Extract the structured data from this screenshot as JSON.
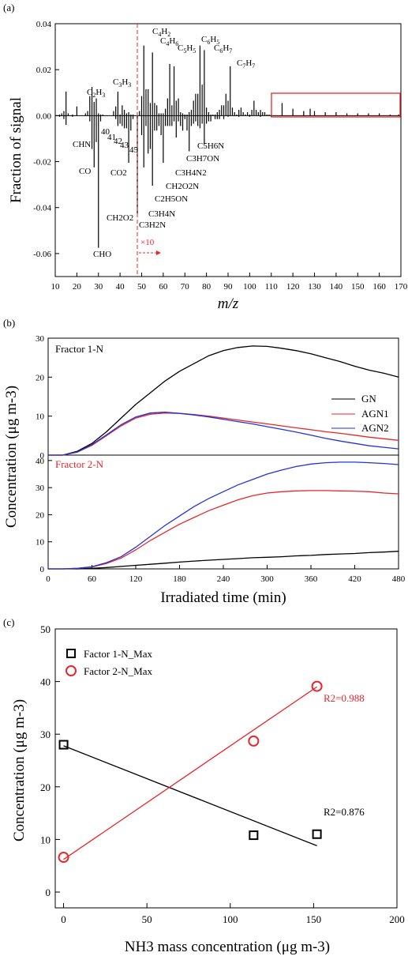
{
  "panel_a": {
    "panel_label": "(a)",
    "ylabel": "Fraction of signal",
    "xlabel": "m/z",
    "multiplier_label": "×10",
    "xticks": [
      "10",
      "20",
      "30",
      "40",
      "50",
      "60",
      "70",
      "80",
      "90",
      "100",
      "110",
      "120",
      "130",
      "140",
      "150",
      "160",
      "170"
    ],
    "yticks": [
      "0.04",
      "0.02",
      "0.00",
      "-0.02",
      "-0.04",
      "-0.06"
    ],
    "annotations_top": [
      {
        "base": "C",
        "sub1": "2",
        "mid": "H",
        "sub2": "3"
      },
      {
        "base": "C",
        "sub1": "3",
        "mid": "H",
        "sub2": "3"
      },
      {
        "base": "C",
        "sub1": "4",
        "mid": "H",
        "sub2": "2"
      },
      {
        "base": "C",
        "sub1": "4",
        "mid": "H",
        "sub2": "6"
      },
      {
        "base": "C",
        "sub1": "5",
        "mid": "H",
        "sub2": "5"
      },
      {
        "base": "C",
        "sub1": "6",
        "mid": "H",
        "sub2": "5"
      },
      {
        "base": "C",
        "sub1": "6",
        "mid": "H",
        "sub2": "7"
      },
      {
        "base": "C",
        "sub1": "7",
        "mid": "H",
        "sub2": "7"
      }
    ],
    "annotations_bottom": {
      "chn": "CHN",
      "co": "CO",
      "n40": "40",
      "n41": "41",
      "n42": "42",
      "n43": "43",
      "n45": "45",
      "co2": "CO2",
      "ch2o2": "CH2O2",
      "cho": "CHO",
      "c3h2n": "C3H2N",
      "c3h4n": "C3H4N",
      "c2h5on": "C2H5ON",
      "ch2o2n": "CH2O2N",
      "c3h4n2": "C3H4N2",
      "c3h7on": "C3H7ON",
      "c5h6n": "C5H6N"
    }
  },
  "panel_b": {
    "panel_label": "(b)",
    "ylabel": "Concentration (μg m-3)",
    "xlabel": "Irradiated  time (min)",
    "top_title": "Fractor 1-N",
    "bottom_title": "Fractor 2-N",
    "xticks": [
      "0",
      "60",
      "120",
      "180",
      "240",
      "300",
      "360",
      "420",
      "480"
    ],
    "yticks_top": [
      "0",
      "10",
      "20",
      "30"
    ],
    "yticks_bottom": [
      "0",
      "10",
      "20",
      "30",
      "40"
    ],
    "legend": [
      "GN",
      "AGN1",
      "AGN2"
    ]
  },
  "panel_c": {
    "panel_label": "(c)",
    "ylabel": "Concentration (μg m-3)",
    "xlabel": "NH3 mass concentration  (μg m-3)",
    "xticks": [
      "0",
      "50",
      "100",
      "150",
      "200"
    ],
    "yticks": [
      "0",
      "10",
      "20",
      "30",
      "40",
      "50"
    ],
    "legend": [
      "Factor 1-N_Max",
      "Factor 2-N_Max"
    ],
    "r2_red": "R2=0.988",
    "r2_black": "R2=0.876"
  },
  "colors": {
    "black": "#000000",
    "red": "#e8262b",
    "blue": "#2233dd"
  },
  "chart_data": [
    {
      "type": "bar",
      "panel": "a",
      "xlabel": "m/z",
      "ylabel": "Fraction of signal",
      "xlim": [
        10,
        170
      ],
      "ylim": [
        -0.07,
        0.04
      ],
      "series": [
        {
          "name": "Factor 1-N",
          "x": [
            12,
            13,
            14,
            15,
            16,
            18,
            20,
            24,
            25,
            26,
            27,
            28,
            29,
            30,
            31,
            32,
            37,
            38,
            39,
            40,
            41,
            42,
            43,
            44,
            45,
            46,
            49,
            50,
            51,
            52,
            53,
            54,
            55,
            56,
            57,
            58,
            59,
            60,
            61,
            62,
            63,
            64,
            65,
            66,
            67,
            68,
            69,
            70,
            71,
            72,
            73,
            74,
            75,
            76,
            77,
            78,
            79,
            80,
            81,
            82,
            83,
            84,
            85,
            86,
            87,
            88,
            89,
            90,
            91,
            92,
            93,
            94,
            95,
            96,
            97,
            98,
            99,
            100,
            101,
            102,
            103,
            104,
            105,
            106,
            107,
            108,
            109,
            110,
            115,
            120,
            125,
            128,
            130,
            135,
            140,
            145,
            150,
            155,
            160,
            165,
            169
          ],
          "values": [
            0.0005,
            0.001,
            0.002,
            0.0105,
            0.001,
            0.0005,
            0.004,
            0.001,
            0.002,
            0.0085,
            0.0125,
            0.006,
            0.0075,
            0.001,
            0.0005,
            0.0005,
            0.002,
            0.004,
            0.0105,
            0.0005,
            0.0045,
            0.0025,
            0.001,
            0.0015,
            0.0005,
            0.0005,
            0.002,
            0.0085,
            0.0305,
            0.0115,
            0.0115,
            0.0055,
            0.0275,
            0.0055,
            0.0045,
            0.001,
            0.001,
            0.001,
            0.003,
            0.0075,
            0.0225,
            0.0045,
            0.0215,
            0.0065,
            0.0075,
            0.0015,
            0.001,
            0.0005,
            0.0005,
            0.0015,
            0.0025,
            0.0065,
            0.0095,
            0.0095,
            0.0305,
            0.0135,
            0.0285,
            0.0035,
            0.0015,
            0.0005,
            0.0005,
            0.0005,
            0.0015,
            0.0025,
            0.0045,
            0.0045,
            0.0095,
            0.0065,
            0.0215,
            0.0035,
            0.0015,
            0.0005,
            0.0025,
            0.0035,
            0.0015,
            0.0005,
            0.0015,
            0.0005,
            0.0025,
            0.0065,
            0.0025,
            0.0015,
            0.0025,
            0.0015,
            0.0015,
            0.0005,
            0.0005,
            0.0005,
            0.0055,
            0.003,
            0.002,
            0.003,
            0.002,
            0.0015,
            0.0015,
            0.001,
            0.001,
            0.001,
            0.001,
            0.0005,
            0.0005
          ]
        },
        {
          "name": "Factor 2-N",
          "x": [
            12,
            14,
            15,
            18,
            26,
            27,
            28,
            29,
            30,
            31,
            38,
            39,
            40,
            41,
            42,
            43,
            44,
            45,
            46,
            48,
            50,
            51,
            52,
            53,
            54,
            55,
            56,
            57,
            58,
            59,
            60,
            61,
            62,
            63,
            64,
            65,
            66,
            67,
            68,
            69,
            70,
            71,
            72,
            73,
            74,
            75,
            76,
            77,
            78,
            79,
            80,
            81,
            82,
            84,
            85,
            86,
            88,
            90,
            95,
            100,
            105,
            110
          ],
          "values": [
            -0.0005,
            -0.0015,
            -0.004,
            -0.0005,
            -0.0025,
            -0.0145,
            -0.0225,
            -0.0115,
            -0.0575,
            -0.0025,
            -0.0015,
            -0.0045,
            -0.0035,
            -0.0045,
            -0.0055,
            -0.0055,
            -0.0205,
            -0.0065,
            -0.0015,
            -0.0425,
            -0.0085,
            -0.0225,
            -0.0045,
            -0.0165,
            -0.0145,
            -0.0305,
            -0.0065,
            -0.0065,
            -0.0045,
            -0.0085,
            -0.0205,
            -0.0045,
            -0.0045,
            -0.0045,
            -0.0045,
            -0.0025,
            -0.0095,
            -0.0025,
            -0.0045,
            -0.0065,
            -0.0015,
            -0.0065,
            -0.0155,
            -0.0045,
            -0.0035,
            -0.0025,
            -0.0045,
            -0.0055,
            -0.0035,
            -0.0125,
            -0.0035,
            -0.0025,
            -0.0025,
            -0.0015,
            -0.0015,
            -0.0015,
            -0.0015,
            -0.0005,
            -0.0005,
            -0.0005,
            -0.0005,
            -0.0005
          ]
        }
      ]
    },
    {
      "type": "line",
      "panel": "b-top",
      "title": "Fractor 1-N",
      "xlabel": "Irradiated  time (min)",
      "xlim": [
        0,
        480
      ],
      "ylim": [
        0,
        30
      ],
      "x": [
        0,
        20,
        40,
        60,
        80,
        100,
        120,
        140,
        160,
        180,
        200,
        220,
        240,
        260,
        280,
        300,
        320,
        340,
        360,
        380,
        400,
        420,
        440,
        460,
        480
      ],
      "series": [
        {
          "name": "GN",
          "values": [
            0,
            0,
            1,
            3,
            6,
            9.5,
            13,
            16,
            19,
            21.5,
            23.5,
            25.5,
            26.8,
            27.6,
            28,
            27.9,
            27.4,
            26.8,
            26,
            25,
            24,
            22.8,
            21.8,
            21,
            20
          ]
        },
        {
          "name": "AGN1",
          "values": [
            0,
            0,
            0.8,
            2.5,
            5,
            7.5,
            9.5,
            10.5,
            10.8,
            10.7,
            10.4,
            10,
            9.5,
            9,
            8.5,
            8,
            7.5,
            7,
            6.5,
            6,
            5.6,
            5.1,
            4.6,
            4.2,
            3.8
          ]
        },
        {
          "name": "AGN2",
          "values": [
            0,
            0,
            0.8,
            2.7,
            5.2,
            7.8,
            9.8,
            10.8,
            11,
            10.7,
            10.3,
            9.8,
            9.2,
            8.6,
            8,
            7.3,
            6.6,
            5.9,
            5.1,
            4.3,
            3.6,
            3,
            2.4,
            2,
            1.6
          ]
        }
      ]
    },
    {
      "type": "line",
      "panel": "b-bottom",
      "title": "Fractor 2-N",
      "xlabel": "Irradiated  time (min)",
      "xlim": [
        0,
        480
      ],
      "ylim": [
        0,
        42
      ],
      "x": [
        0,
        20,
        40,
        60,
        80,
        100,
        120,
        140,
        160,
        180,
        200,
        220,
        240,
        260,
        280,
        300,
        320,
        340,
        360,
        380,
        400,
        420,
        440,
        460,
        480
      ],
      "series": [
        {
          "name": "GN",
          "values": [
            0,
            0,
            0,
            0.2,
            0.5,
            0.9,
            1.3,
            1.7,
            2.1,
            2.5,
            2.9,
            3.2,
            3.5,
            3.8,
            4.1,
            4.3,
            4.5,
            4.8,
            5,
            5.3,
            5.5,
            5.7,
            6,
            6.2,
            6.5
          ]
        },
        {
          "name": "AGN1",
          "values": [
            0,
            0,
            0.2,
            0.7,
            2,
            4,
            7,
            10.5,
            13.5,
            16.5,
            19,
            21.5,
            23.5,
            25.5,
            27,
            28,
            28.5,
            28.8,
            28.9,
            28.9,
            28.8,
            28.7,
            28.5,
            28,
            27.7
          ]
        },
        {
          "name": "AGN2",
          "values": [
            0,
            0,
            0.2,
            0.8,
            2.3,
            4.5,
            8,
            12,
            16,
            19.5,
            23,
            26,
            28.5,
            31,
            33,
            35,
            36.5,
            37.8,
            38.7,
            39.2,
            39.4,
            39.4,
            39.2,
            38.9,
            38.5
          ]
        }
      ]
    },
    {
      "type": "scatter",
      "panel": "c",
      "xlabel": "NH3 mass concentration  (μg m-3)",
      "ylabel": "Concentration (μg m-3)",
      "xlim": [
        -5,
        200
      ],
      "ylim": [
        -3,
        50
      ],
      "series": [
        {
          "name": "Factor 1-N_Max",
          "x": [
            0,
            114,
            152
          ],
          "values": [
            28,
            10.8,
            11
          ],
          "fit": [
            [
              0,
              27.8
            ],
            [
              152,
              8.8
            ]
          ],
          "r2": "R2=0.876"
        },
        {
          "name": "Factor 2-N_Max",
          "x": [
            0,
            114,
            152
          ],
          "values": [
            6.6,
            28.7,
            39.1
          ],
          "fit": [
            [
              0,
              6.2
            ],
            [
              152,
              39
            ]
          ],
          "r2": "R2=0.988"
        }
      ]
    }
  ]
}
